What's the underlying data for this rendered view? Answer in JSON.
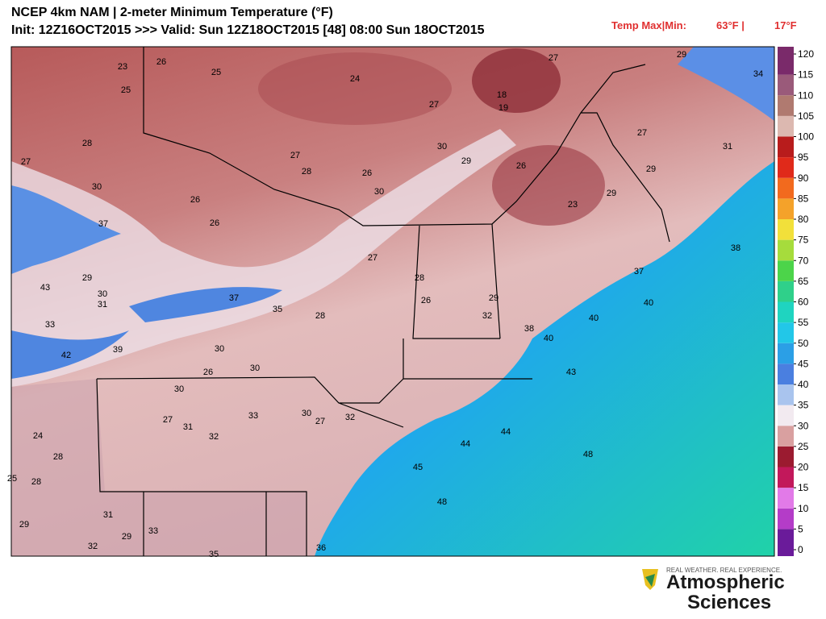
{
  "header": {
    "title": "NCEP 4km NAM | 2-meter Minimum Temperature (°F)",
    "subtitle": "Init: 12Z16OCT2015 >>> Valid: Sun 12Z18OCT2015 [48] 08:00 Sun 18OCT2015",
    "temp_label": "Temp Max|Min:",
    "temp_max": "63°F |",
    "temp_min": "17°F"
  },
  "colorbar": {
    "ticks": [
      0,
      5,
      10,
      15,
      20,
      25,
      30,
      35,
      40,
      45,
      50,
      55,
      60,
      65,
      70,
      75,
      80,
      85,
      90,
      95,
      100,
      105,
      110,
      115,
      120
    ],
    "colors": [
      "#6a1b9a",
      "#b43cc8",
      "#e27ae8",
      "#c2185b",
      "#9b1b30",
      "#d9a0a0",
      "#f2eaf0",
      "#a9c4ee",
      "#4a7fe0",
      "#2b9fe6",
      "#22c7e8",
      "#1fd4c0",
      "#2fd08a",
      "#4cd44a",
      "#a6dc3c",
      "#f2e03a",
      "#f4a22a",
      "#f26a1e",
      "#e02a1a",
      "#b81c1c",
      "#dcb8b0",
      "#b07a70",
      "#9a5a7a",
      "#7a2a6a"
    ]
  },
  "map_labels": [
    23,
    26,
    25,
    24,
    27,
    18,
    19,
    27,
    29,
    34,
    25,
    28,
    27,
    30,
    26,
    26,
    27,
    28,
    26,
    30,
    30,
    29,
    26,
    23,
    29,
    29,
    27,
    31,
    37,
    29,
    30,
    31,
    43,
    33,
    42,
    39,
    30,
    26,
    30,
    37,
    35,
    28,
    27,
    28,
    26,
    29,
    32,
    38,
    40,
    43,
    40,
    40,
    38,
    37,
    44,
    44,
    45,
    48,
    48,
    30,
    27,
    31,
    32,
    33,
    30,
    27,
    32,
    28,
    24,
    25,
    28,
    31,
    29,
    32,
    35,
    36,
    33,
    29
  ],
  "logo": {
    "tagline": "REAL WEATHER. REAL EXPERIENCE.",
    "line1": "Atmospheric",
    "line2": "Sciences"
  }
}
